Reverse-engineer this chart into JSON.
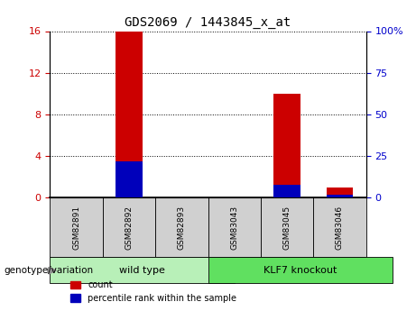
{
  "title": "GDS2069 / 1443845_x_at",
  "samples": [
    "GSM82891",
    "GSM82892",
    "GSM82893",
    "GSM83043",
    "GSM83045",
    "GSM83046"
  ],
  "count_values": [
    0,
    16,
    0,
    0,
    10,
    1
  ],
  "percentile_values": [
    0,
    22,
    0,
    0,
    8,
    2
  ],
  "groups": [
    {
      "label": "wild type",
      "indices": [
        0,
        1,
        2
      ],
      "color": "#b8f0b8"
    },
    {
      "label": "KLF7 knockout",
      "indices": [
        3,
        4,
        5
      ],
      "color": "#60e060"
    }
  ],
  "group_label": "genotype/variation",
  "ylim_left": [
    0,
    16
  ],
  "ylim_right": [
    0,
    100
  ],
  "yticks_left": [
    0,
    4,
    8,
    12,
    16
  ],
  "yticks_right": [
    0,
    25,
    50,
    75,
    100
  ],
  "bar_color_count": "#cc0000",
  "bar_color_percentile": "#0000bb",
  "tick_label_color_left": "#cc0000",
  "tick_label_color_right": "#0000cc",
  "legend_count_label": "count",
  "legend_percentile_label": "percentile rank within the sample",
  "sample_box_color": "#d0d0d0",
  "bar_width": 0.5
}
